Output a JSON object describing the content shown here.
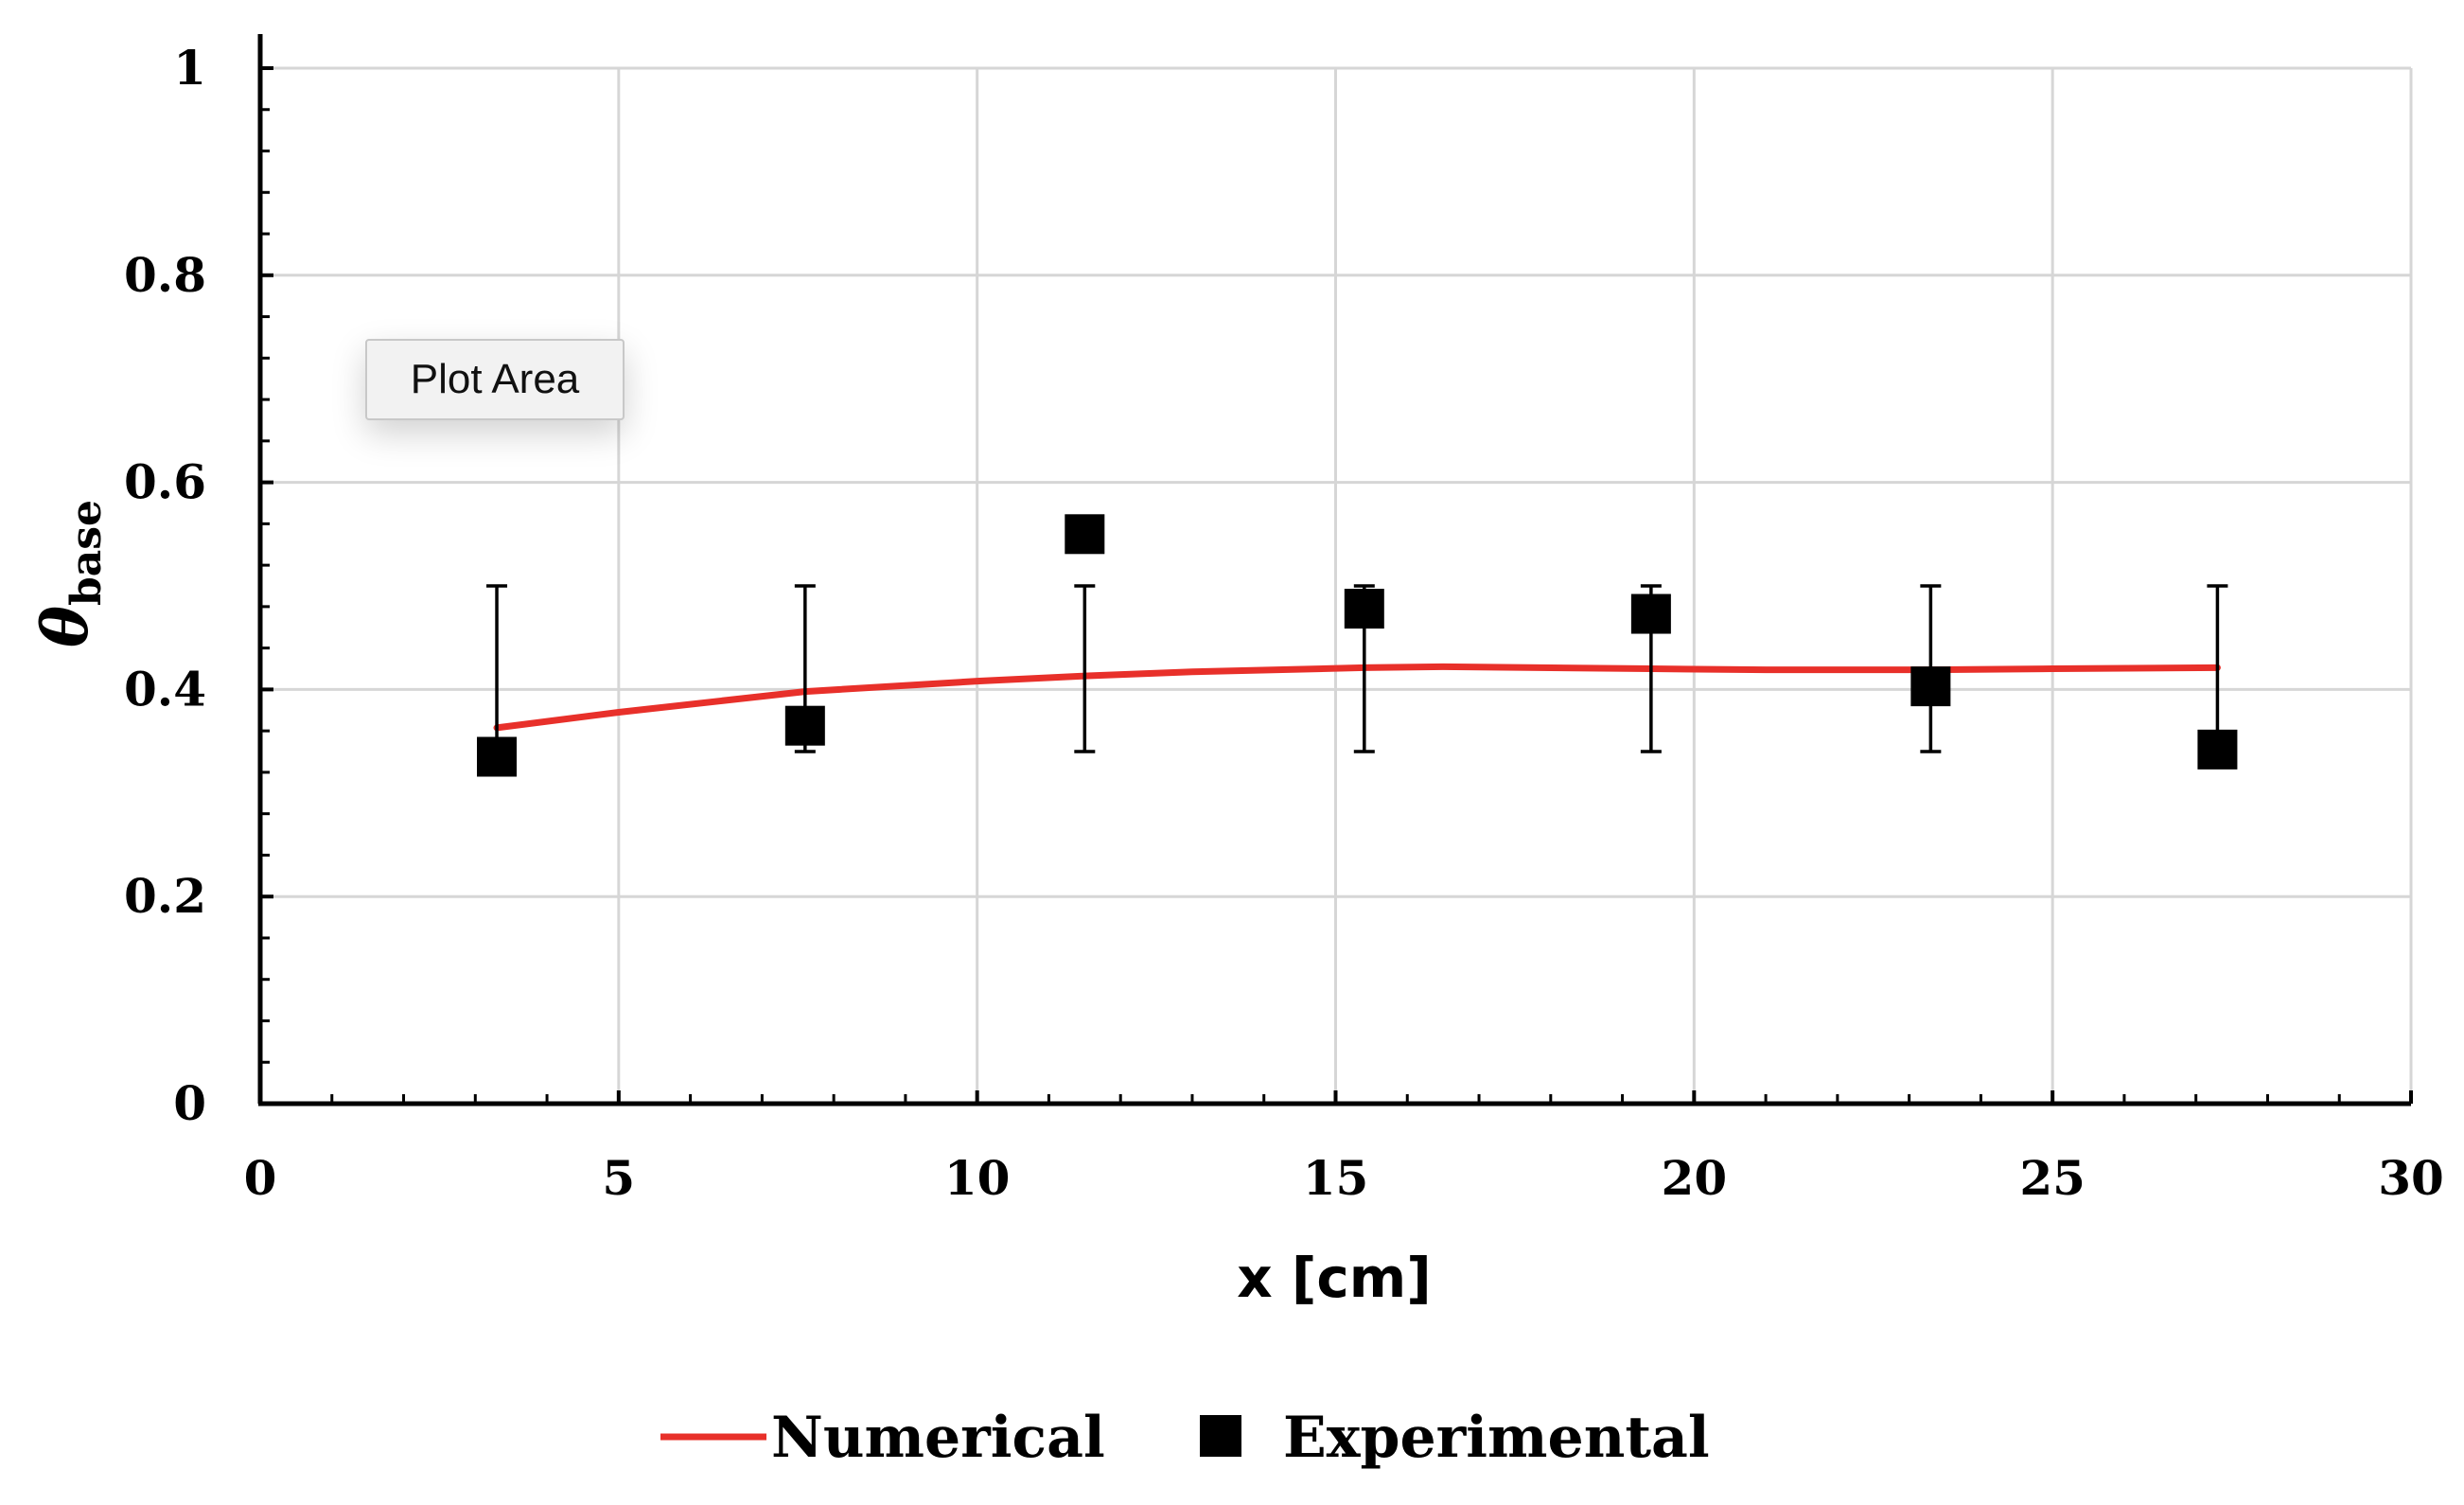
{
  "chart_data": {
    "type": "scatter",
    "title": "",
    "xlabel": "x [cm]",
    "ylabel": "θ",
    "ylabel_subscript": "base",
    "xlim": [
      0,
      30
    ],
    "ylim": [
      0,
      1
    ],
    "xticks": [
      "0",
      "5",
      "10",
      "15",
      "20",
      "25",
      "30"
    ],
    "yticks": [
      "0",
      "0.2",
      "0.4",
      "0.6",
      "0.8",
      "1"
    ],
    "grid": true,
    "legend_position": "bottom-center",
    "series": [
      {
        "name": "Numerical",
        "kind": "line",
        "color": "#e8302a",
        "x": [
          3.3,
          5,
          7.6,
          10,
          11.5,
          13,
          15.4,
          16.5,
          19.4,
          21,
          23.3,
          25,
          27.3
        ],
        "y": [
          0.363,
          0.378,
          0.398,
          0.408,
          0.413,
          0.417,
          0.421,
          0.422,
          0.42,
          0.419,
          0.419,
          0.42,
          0.421
        ]
      },
      {
        "name": "Experimental",
        "kind": "scatter",
        "color": "#000000",
        "marker": "square",
        "x": [
          3.3,
          7.6,
          11.5,
          15.4,
          19.4,
          23.3,
          27.3
        ],
        "y": [
          0.335,
          0.365,
          0.55,
          0.478,
          0.473,
          0.403,
          0.342
        ],
        "error_low": [
          0.34,
          0.34,
          0.34,
          0.34,
          0.34,
          0.34,
          0.34
        ],
        "error_high": [
          0.5,
          0.5,
          0.5,
          0.5,
          0.5,
          0.5,
          0.5
        ]
      }
    ]
  },
  "tooltip": {
    "text": "Plot Area"
  }
}
